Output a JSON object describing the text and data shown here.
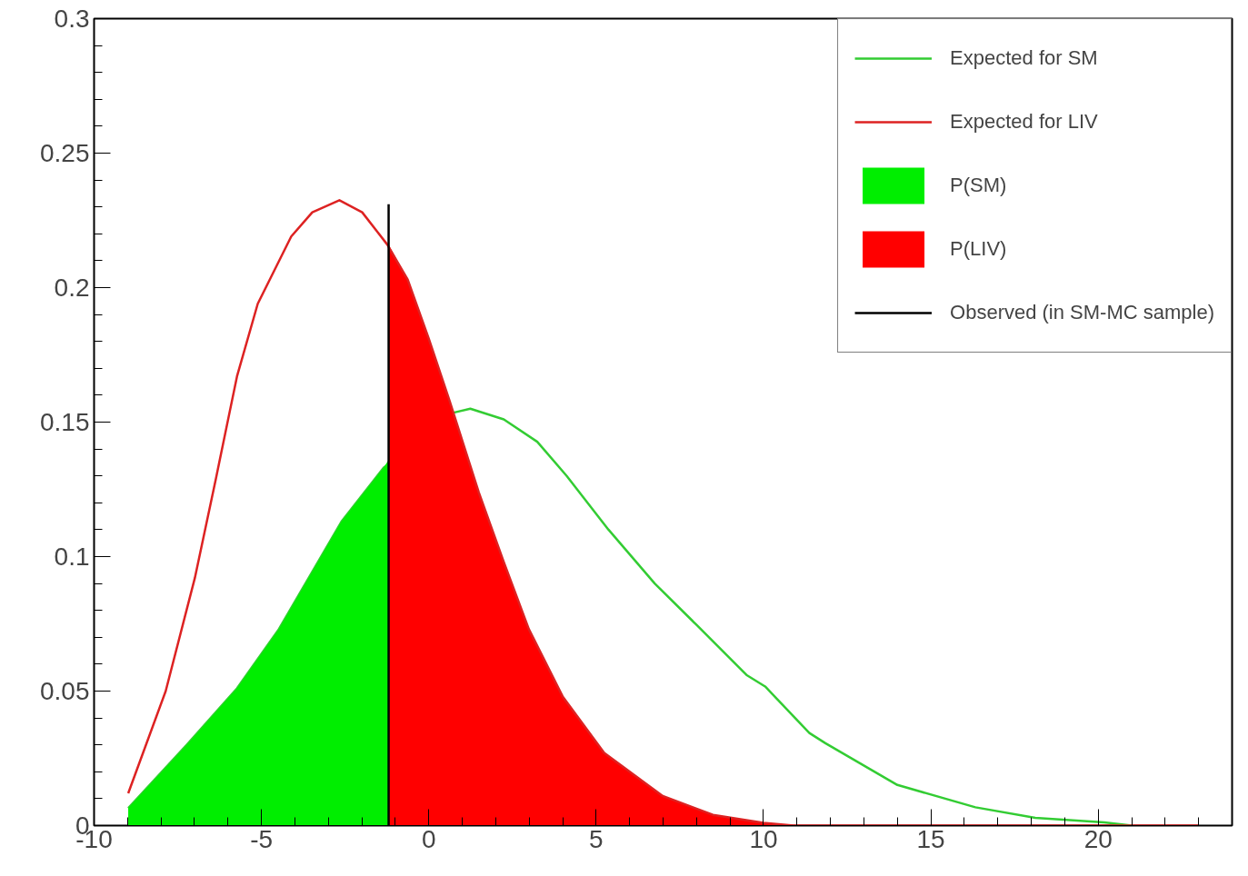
{
  "chart_data": {
    "type": "line",
    "xlim": [
      -10,
      24
    ],
    "ylim": [
      0,
      0.3
    ],
    "xticks": [
      -10,
      -5,
      0,
      5,
      10,
      15,
      20
    ],
    "yticks": [
      0,
      0.05,
      0.1,
      0.15,
      0.2,
      0.25,
      0.3
    ],
    "grid": false,
    "legend": "top right",
    "series": [
      {
        "name": "Expected for SM",
        "color": "#33cc33",
        "x": [
          -8.98,
          -7.23,
          -5.73,
          -4.48,
          -2.61,
          -1.35,
          0.74,
          1.24,
          2.24,
          3.24,
          4.12,
          5.37,
          6.75,
          8.0,
          9.49,
          10.05,
          11.37,
          11.85,
          14.0,
          16.33,
          18.12,
          20.18,
          21.0
        ],
        "values": [
          0.0065,
          0.03,
          0.051,
          0.073,
          0.113,
          0.133,
          0.1535,
          0.155,
          0.151,
          0.1427,
          0.13,
          0.11,
          0.09,
          0.0746,
          0.056,
          0.0517,
          0.0344,
          0.0306,
          0.0151,
          0.0068,
          0.0029,
          0.0012,
          0
        ]
      },
      {
        "name": "P(SM)",
        "type": "area",
        "color": "#00ee00",
        "x": [
          -8.98,
          -7.23,
          -5.73,
          -4.48,
          -2.61,
          -1.35,
          -1.2
        ],
        "values": [
          0.0065,
          0.03,
          0.051,
          0.073,
          0.113,
          0.133,
          0.136
        ]
      },
      {
        "name": "P(LIV)",
        "type": "area",
        "color": "#ff0000",
        "x": [
          -1.2,
          -0.63,
          0,
          0.62,
          1.49,
          2.24,
          2.99,
          4.0,
          5.24,
          6.99,
          8.49,
          10.0,
          10.9
        ],
        "values": [
          0.216,
          0.203,
          0.181,
          0.158,
          0.124,
          0.098,
          0.073,
          0.048,
          0.027,
          0.011,
          0.004,
          0.001,
          0
        ]
      },
      {
        "name": "Expected for LIV",
        "color": "#dd2222",
        "x": [
          -8.98,
          -7.86,
          -6.99,
          -6.36,
          -5.73,
          -5.11,
          -4.11,
          -3.48,
          -2.67,
          -1.99,
          -1.24,
          -0.63,
          0,
          0.62,
          1.49,
          2.24,
          2.99,
          4.0,
          5.24,
          6.99,
          8.49,
          10.0,
          10.9,
          23.0
        ],
        "values": [
          0.012,
          0.05,
          0.092,
          0.129,
          0.167,
          0.194,
          0.219,
          0.228,
          0.2325,
          0.228,
          0.216,
          0.203,
          0.181,
          0.158,
          0.124,
          0.098,
          0.073,
          0.048,
          0.027,
          0.011,
          0.004,
          0.001,
          0,
          0
        ]
      },
      {
        "name": "Observed (in SM-MC sample)",
        "color": "#000000",
        "x": [
          -1.2,
          -1.2
        ],
        "values": [
          0,
          0.231
        ]
      }
    ]
  }
}
